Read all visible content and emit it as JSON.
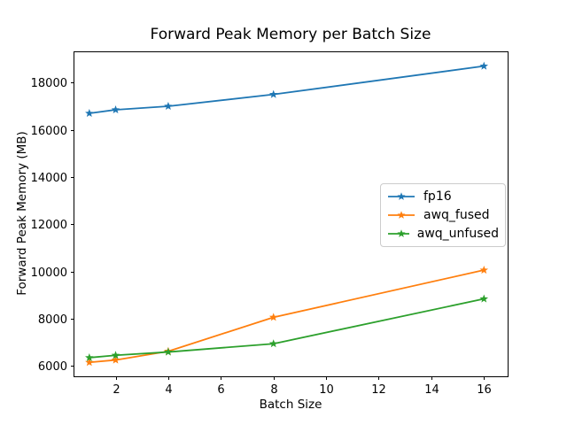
{
  "chart_data": {
    "type": "line",
    "title": "Forward Peak Memory per Batch Size",
    "xlabel": "Batch Size",
    "ylabel": "Forward Peak Memory (MB)",
    "x": [
      1,
      2,
      4,
      8,
      16
    ],
    "series": [
      {
        "name": "fp16",
        "color": "#1f77b4",
        "values": [
          16700,
          16850,
          17000,
          17500,
          18700
        ]
      },
      {
        "name": "awq_fused",
        "color": "#ff7f0e",
        "values": [
          6150,
          6250,
          6620,
          8060,
          10060
        ]
      },
      {
        "name": "awq_unfused",
        "color": "#2ca02c",
        "values": [
          6350,
          6450,
          6590,
          6940,
          8840
        ]
      }
    ],
    "marker": "star",
    "xticks": [
      2,
      4,
      6,
      8,
      10,
      12,
      14,
      16
    ],
    "yticks": [
      6000,
      8000,
      10000,
      12000,
      14000,
      16000,
      18000
    ],
    "xlim": [
      0.4,
      16.9
    ],
    "ylim": [
      5560,
      19325
    ],
    "grid": false,
    "legend_position": "center-right",
    "background_color": "#ffffff",
    "axis_color": "#000000"
  }
}
